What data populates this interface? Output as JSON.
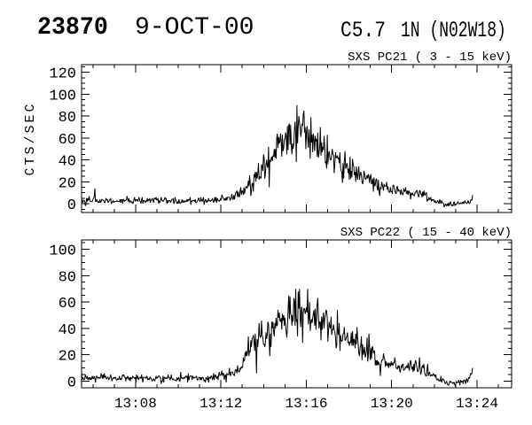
{
  "header": {
    "region_number": "23870",
    "date": "9-OCT-00",
    "goes_class": "C5.7",
    "importance_location": "1N (N02W18)"
  },
  "chart_data": [
    {
      "panel_id": "pc21",
      "type": "line",
      "title": "SXS PC21  (  3 - 15 keV)",
      "detector": "SXS PC21",
      "energy_range_kev": [
        3,
        15
      ],
      "ylabel": "CTS/SEC",
      "xlabel": "",
      "line_color": "#000000",
      "grid": false,
      "ylim": [
        -8,
        127
      ],
      "yticks": [
        0,
        20,
        40,
        60,
        80,
        100,
        120
      ],
      "y_minor_step": 5,
      "xlim_minutes_after_1300": [
        5.47,
        25.62
      ],
      "xticks": [
        {
          "minute": 8,
          "label": "13:08"
        },
        {
          "minute": 12,
          "label": "13:12"
        },
        {
          "minute": 16,
          "label": "13:16"
        },
        {
          "minute": 20,
          "label": "13:20"
        },
        {
          "minute": 24,
          "label": "13:24"
        }
      ],
      "x_minor_step_minutes": 1,
      "show_x_labels": false,
      "background_cts_per_sec": 3,
      "peak_cts_per_sec": 90,
      "t_data_end_minutes": 23.79,
      "envelope_t_v": [
        [
          5.47,
          3
        ],
        [
          7,
          3
        ],
        [
          9,
          3
        ],
        [
          10.5,
          3
        ],
        [
          11.8,
          3.5
        ],
        [
          12.4,
          5
        ],
        [
          12.8,
          8
        ],
        [
          13.1,
          12
        ],
        [
          13.4,
          17
        ],
        [
          13.7,
          26
        ],
        [
          14,
          35
        ],
        [
          14.3,
          42
        ],
        [
          14.7,
          50
        ],
        [
          15.1,
          57
        ],
        [
          15.5,
          63
        ],
        [
          15.85,
          66
        ],
        [
          16.2,
          63
        ],
        [
          16.6,
          58
        ],
        [
          17,
          48
        ],
        [
          17.5,
          40
        ],
        [
          18,
          32
        ],
        [
          18.5,
          26
        ],
        [
          19,
          20
        ],
        [
          19.5,
          15
        ],
        [
          20,
          12
        ],
        [
          20.5,
          10
        ],
        [
          21,
          9
        ],
        [
          21.4,
          10
        ],
        [
          21.8,
          5
        ],
        [
          22.1,
          1
        ],
        [
          22.6,
          -1
        ],
        [
          23.1,
          0
        ],
        [
          23.5,
          1
        ],
        [
          23.79,
          4
        ]
      ],
      "forced_spikes_t_v": [
        [
          6.1,
          14
        ],
        [
          15.55,
          90
        ],
        [
          15.9,
          85
        ],
        [
          23.79,
          8
        ]
      ],
      "noise": {
        "base_sd": 1.2,
        "rel_sd": 0.13,
        "dip_prob": 0.04,
        "seed": 42,
        "max_value": 91
      },
      "n_samples": 620
    },
    {
      "panel_id": "pc22",
      "type": "line",
      "title": "SXS PC22  ( 15 - 40 keV)",
      "detector": "SXS PC22",
      "energy_range_kev": [
        15,
        40
      ],
      "ylabel": "",
      "xlabel": "",
      "line_color": "#000000",
      "grid": false,
      "ylim": [
        -5,
        107
      ],
      "yticks": [
        0,
        20,
        40,
        60,
        80,
        100
      ],
      "y_minor_step": 5,
      "xlim_minutes_after_1300": [
        5.47,
        25.62
      ],
      "xticks": [
        {
          "minute": 8,
          "label": "13:08"
        },
        {
          "minute": 12,
          "label": "13:12"
        },
        {
          "minute": 16,
          "label": "13:16"
        },
        {
          "minute": 20,
          "label": "13:20"
        },
        {
          "minute": 24,
          "label": "13:24"
        }
      ],
      "x_minor_step_minutes": 1,
      "show_x_labels": true,
      "background_cts_per_sec": 2.5,
      "peak_cts_per_sec": 70,
      "t_data_end_minutes": 23.79,
      "envelope_t_v": [
        [
          5.47,
          2.5
        ],
        [
          7,
          2.5
        ],
        [
          9,
          2.5
        ],
        [
          11,
          2.5
        ],
        [
          12.4,
          4
        ],
        [
          12.7,
          6
        ],
        [
          13,
          12
        ],
        [
          13.2,
          20
        ],
        [
          13.4,
          28
        ],
        [
          13.7,
          33
        ],
        [
          14,
          36
        ],
        [
          14.4,
          40
        ],
        [
          14.8,
          44
        ],
        [
          15.2,
          49
        ],
        [
          15.6,
          52
        ],
        [
          15.9,
          53
        ],
        [
          16.2,
          51
        ],
        [
          16.6,
          48
        ],
        [
          17,
          43
        ],
        [
          17.5,
          37
        ],
        [
          18,
          31
        ],
        [
          18.5,
          26
        ],
        [
          19,
          21
        ],
        [
          19.5,
          16
        ],
        [
          20,
          13
        ],
        [
          20.5,
          11
        ],
        [
          21,
          10
        ],
        [
          21.3,
          11
        ],
        [
          21.7,
          7
        ],
        [
          22.1,
          2
        ],
        [
          22.5,
          -1
        ],
        [
          23,
          -1
        ],
        [
          23.5,
          0
        ],
        [
          23.79,
          5
        ]
      ],
      "forced_spikes_t_v": [
        [
          15.5,
          70
        ],
        [
          21.3,
          18
        ],
        [
          23.79,
          10
        ]
      ],
      "noise": {
        "base_sd": 1.2,
        "rel_sd": 0.13,
        "dip_prob": 0.04,
        "seed": 7,
        "max_value": 70
      },
      "n_samples": 620
    }
  ]
}
